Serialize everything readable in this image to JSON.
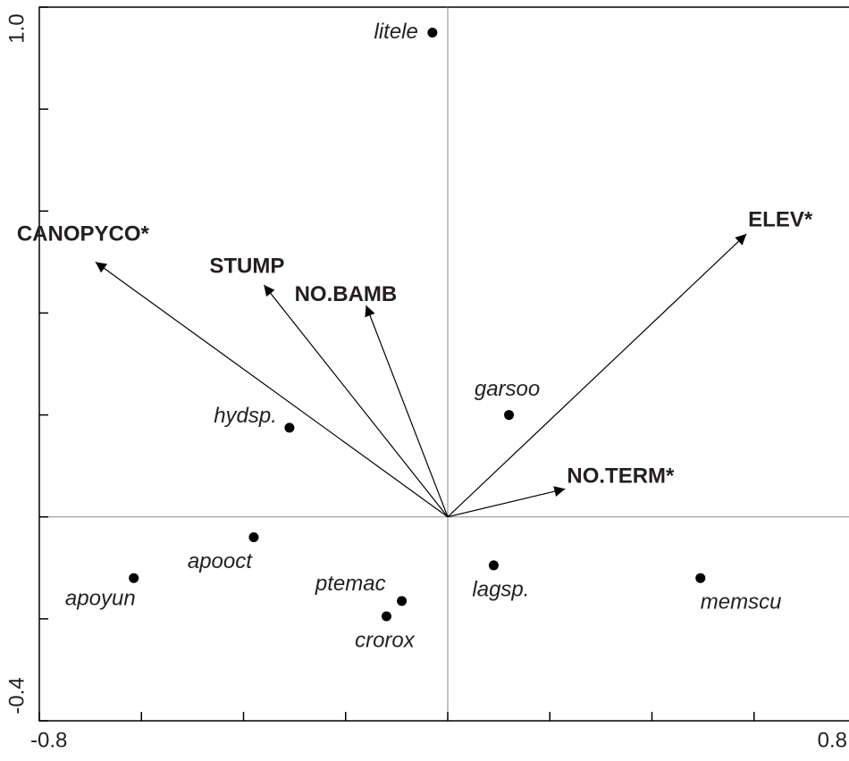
{
  "chart_data": {
    "type": "biplot",
    "xlim": [
      -0.8,
      0.8
    ],
    "ylim": [
      -0.4,
      1.0
    ],
    "xticks": [
      -0.8,
      {
        "value": -0.6,
        "label": null
      },
      {
        "value": -0.4,
        "label": null
      },
      {
        "value": -0.2,
        "label": null
      },
      {
        "value": 0,
        "label": null
      },
      {
        "value": 0.2,
        "label": null
      },
      {
        "value": 0.4,
        "label": null
      },
      {
        "value": 0.6,
        "label": null
      },
      0.8
    ],
    "yticks": [
      -0.4,
      {
        "value": -0.2,
        "label": null
      },
      {
        "value": 0,
        "label": null
      },
      {
        "value": 0.2,
        "label": null
      },
      {
        "value": 0.4,
        "label": null
      },
      {
        "value": 0.6,
        "label": null
      },
      {
        "value": 0.8,
        "label": null
      },
      {
        "value": 1.0,
        "label": "1.0"
      }
    ],
    "points": {
      "color": "#000000",
      "labels": [
        "litele",
        "garsoo",
        "hydsp.",
        "apooct",
        "apoyun",
        "ptemac",
        "crorox",
        "lagsp.",
        "memscu"
      ],
      "x": [
        -0.03,
        0.12,
        -0.31,
        -0.38,
        -0.615,
        -0.09,
        -0.12,
        0.09,
        0.495
      ],
      "y": [
        0.95,
        0.2,
        0.175,
        -0.04,
        -0.12,
        -0.165,
        -0.195,
        -0.095,
        -0.12
      ]
    },
    "arrows": {
      "color": "#000000",
      "labels": [
        "CANOPYCO*",
        "STUMP",
        "NO.BAMB",
        "ELEV*",
        "NO.TERM*"
      ],
      "x": [
        -0.69,
        -0.36,
        -0.16,
        0.585,
        0.23
      ],
      "y": [
        0.5,
        0.455,
        0.415,
        0.555,
        0.055
      ]
    }
  }
}
